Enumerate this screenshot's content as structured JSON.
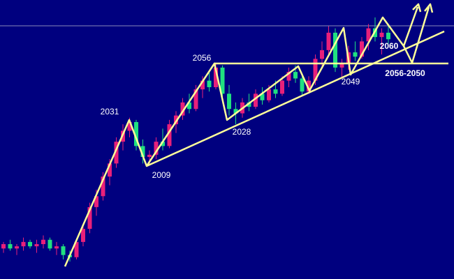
{
  "chart_data": {
    "type": "candlestick",
    "up_color": "#e8207a",
    "down_color": "#20e080",
    "ylim": [
      1957,
      2085
    ],
    "categories": [
      null,
      null,
      null,
      null,
      null,
      null,
      null,
      null,
      null,
      null,
      null,
      null,
      null,
      null,
      null,
      null,
      null,
      null,
      null,
      null,
      null,
      null,
      null,
      null,
      null,
      null,
      null,
      null,
      null,
      null,
      null,
      null,
      null,
      null,
      null,
      null,
      null,
      null,
      null,
      null,
      null,
      null,
      null,
      null,
      null,
      null,
      null,
      null,
      null,
      null,
      null,
      null,
      null,
      null,
      null,
      null,
      null,
      null,
      null
    ],
    "open": [
      1971,
      1973,
      1971,
      1972,
      1974,
      1972,
      1973,
      1975,
      1971,
      1972,
      1968,
      1967,
      1974,
      1980,
      1990,
      1995,
      2004,
      2010,
      2020,
      2025,
      2029,
      2018,
      2013,
      2014,
      2020,
      2018,
      2028,
      2032,
      2038,
      2035,
      2044,
      2048,
      2045,
      2054,
      2042,
      2035,
      2033,
      2038,
      2036,
      2042,
      2039,
      2044,
      2042,
      2048,
      2052,
      2049,
      2043,
      2048,
      2058,
      2062,
      2070,
      2054,
      2056,
      2061,
      2059,
      2066,
      2072,
      2068,
      2070
    ],
    "high": [
      1974,
      1975,
      1973,
      1976,
      1975,
      1975,
      1977,
      1976,
      1974,
      1973,
      1970,
      1975,
      1982,
      1992,
      1998,
      2006,
      2012,
      2022,
      2028,
      2031,
      2030,
      2021,
      2016,
      2022,
      2026,
      2030,
      2034,
      2040,
      2042,
      2046,
      2050,
      2052,
      2056,
      2055,
      2046,
      2038,
      2040,
      2042,
      2044,
      2045,
      2046,
      2048,
      2050,
      2054,
      2055,
      2051,
      2050,
      2060,
      2066,
      2073,
      2072,
      2058,
      2064,
      2066,
      2068,
      2074,
      2077,
      2072,
      2073
    ],
    "low": [
      1969,
      1970,
      1968,
      1970,
      1971,
      1969,
      1971,
      1970,
      1968,
      1966,
      1965,
      1966,
      1972,
      1978,
      1986,
      1993,
      2000,
      2008,
      2016,
      2022,
      2016,
      2010,
      2009,
      2012,
      2016,
      2017,
      2024,
      2030,
      2033,
      2034,
      2040,
      2043,
      2044,
      2040,
      2032,
      2028,
      2031,
      2034,
      2035,
      2037,
      2038,
      2040,
      2041,
      2045,
      2047,
      2041,
      2042,
      2046,
      2054,
      2060,
      2052,
      2049,
      2053,
      2057,
      2058,
      2062,
      2066,
      2060,
      2065
    ],
    "close": [
      1973,
      1971,
      1972,
      1974,
      1972,
      1973,
      1975,
      1971,
      1972,
      1968,
      1967,
      1974,
      1980,
      1990,
      1995,
      2004,
      2010,
      2020,
      2025,
      2029,
      2018,
      2013,
      2014,
      2020,
      2018,
      2028,
      2032,
      2038,
      2035,
      2044,
      2048,
      2045,
      2054,
      2042,
      2035,
      2033,
      2038,
      2036,
      2042,
      2039,
      2044,
      2042,
      2048,
      2052,
      2049,
      2043,
      2048,
      2058,
      2062,
      2070,
      2054,
      2056,
      2061,
      2059,
      2066,
      2072,
      2068,
      2070,
      2067
    ],
    "annotations": [
      "2031",
      "2056",
      "2009",
      "2028",
      "2049",
      "2060",
      "2056-2050"
    ]
  }
}
